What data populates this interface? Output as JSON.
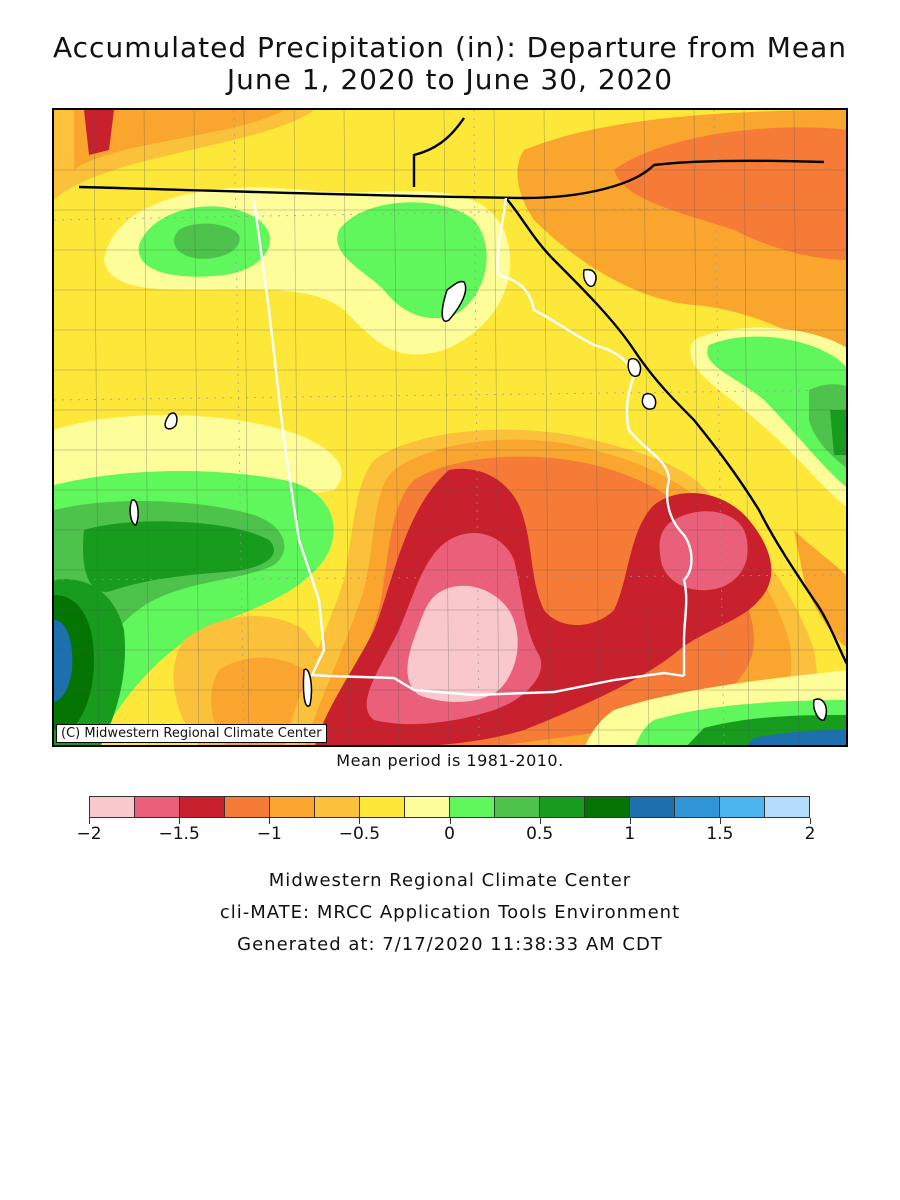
{
  "header": {
    "title_line1": "Accumulated Precipitation (in): Departure from Mean",
    "title_line2": "June 1, 2020 to June 30, 2020"
  },
  "map": {
    "copyright": "(C) Midwestern Regional Climate Center"
  },
  "mean_note": "Mean period is 1981-2010.",
  "legend": {
    "colors": [
      "#f9c8cd",
      "#ea5f7a",
      "#c8202c",
      "#f67b36",
      "#f9a52e",
      "#fbc13a",
      "#fde83a",
      "#fdfd9a",
      "#5ff75c",
      "#4dc34b",
      "#179c1e",
      "#047502",
      "#1c70ad",
      "#2f95d6",
      "#4cb4ee",
      "#b4dcfb"
    ],
    "ticks": [
      {
        "value": -2,
        "label": "−2"
      },
      {
        "value": -1.5,
        "label": "−1.5"
      },
      {
        "value": -1,
        "label": "−1"
      },
      {
        "value": -0.5,
        "label": "−0.5"
      },
      {
        "value": 0,
        "label": "0"
      },
      {
        "value": 0.5,
        "label": "0.5"
      },
      {
        "value": 1,
        "label": "1"
      },
      {
        "value": 1.5,
        "label": "1.5"
      },
      {
        "value": 2,
        "label": "2"
      }
    ],
    "min": -2,
    "max": 2
  },
  "footer": {
    "line1": "Midwestern Regional Climate Center",
    "line2": "cli-MATE: MRCC Application Tools Environment",
    "line3": "Generated at: 7/17/2020 11:38:33 AM CDT"
  }
}
